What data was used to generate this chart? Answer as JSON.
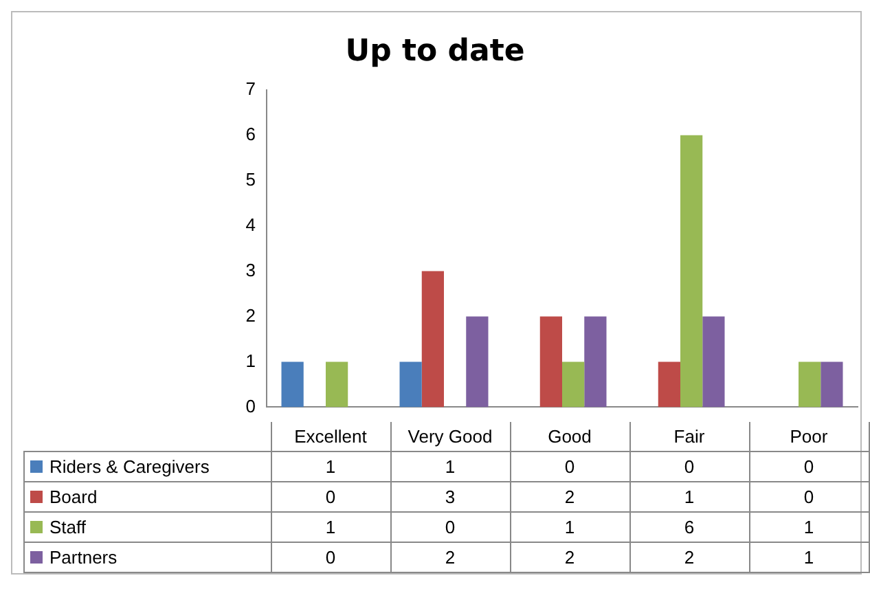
{
  "chart_data": {
    "type": "bar",
    "title": "Up to date",
    "categories": [
      "Excellent",
      "Very Good",
      "Good",
      "Fair",
      "Poor"
    ],
    "series": [
      {
        "name": "Riders & Caregivers",
        "color": "#4a7ebb",
        "values": [
          1,
          1,
          0,
          0,
          0
        ]
      },
      {
        "name": "Board",
        "color": "#be4b48",
        "values": [
          0,
          3,
          2,
          1,
          0
        ]
      },
      {
        "name": "Staff",
        "color": "#98b954",
        "values": [
          1,
          0,
          1,
          6,
          1
        ]
      },
      {
        "name": "Partners",
        "color": "#7d60a0",
        "values": [
          0,
          2,
          2,
          2,
          1
        ]
      }
    ],
    "ylim": [
      0,
      7
    ],
    "yticks": [
      0,
      1,
      2,
      3,
      4,
      5,
      6,
      7
    ],
    "grid": false,
    "legend": "bottom",
    "data_labels": true
  }
}
